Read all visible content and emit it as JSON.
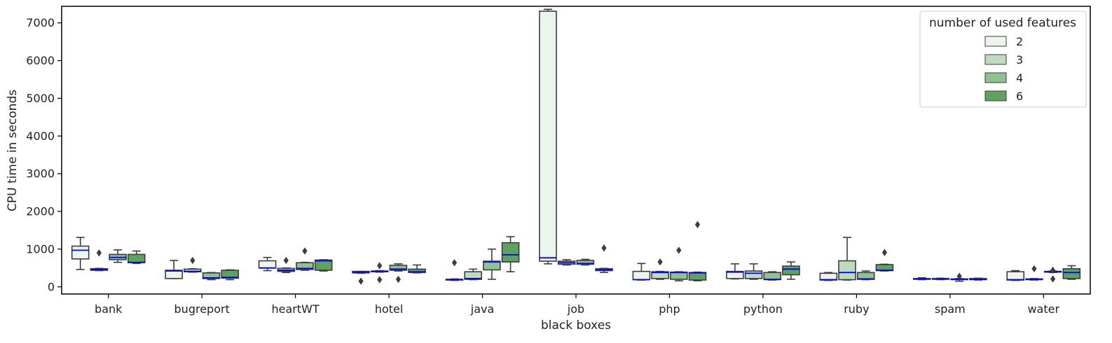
{
  "chart_data": {
    "type": "boxplot",
    "xlabel": "black boxes",
    "ylabel": "CPU time in seconds",
    "ylim": [
      -190,
      7440
    ],
    "yticks": [
      0,
      1000,
      2000,
      3000,
      4000,
      5000,
      6000,
      7000
    ],
    "categories": [
      "bank",
      "bugreport",
      "heartWT",
      "hotel",
      "java",
      "job",
      "php",
      "python",
      "ruby",
      "spam",
      "water"
    ],
    "legend": {
      "title": "number of used features",
      "placement": "top-right"
    },
    "grid": false,
    "median_color": "#0000ff",
    "series": [
      {
        "name": "2",
        "color": "#ebf5eb",
        "boxes": [
          {
            "whislo": 460,
            "q1": 740,
            "med": 970,
            "q3": 1080,
            "whishi": 1310,
            "fliers": []
          },
          {
            "whislo": 220,
            "q1": 220,
            "med": 420,
            "q3": 440,
            "whishi": 700,
            "fliers": []
          },
          {
            "whislo": 430,
            "q1": 500,
            "med": 500,
            "q3": 690,
            "whishi": 780,
            "fliers": []
          },
          {
            "whislo": 360,
            "q1": 370,
            "med": 390,
            "q3": 410,
            "whishi": 410,
            "fliers": [
              150
            ]
          },
          {
            "whislo": 170,
            "q1": 180,
            "med": 190,
            "q3": 200,
            "whishi": 210,
            "fliers": [
              640
            ]
          },
          {
            "whislo": 610,
            "q1": 680,
            "med": 770,
            "q3": 7310,
            "whishi": 7360,
            "fliers": []
          },
          {
            "whislo": 180,
            "q1": 190,
            "med": 190,
            "q3": 410,
            "whishi": 620,
            "fliers": []
          },
          {
            "whislo": 210,
            "q1": 220,
            "med": 390,
            "q3": 410,
            "whishi": 610,
            "fliers": []
          },
          {
            "whislo": 170,
            "q1": 180,
            "med": 190,
            "q3": 360,
            "whishi": 380,
            "fliers": []
          },
          {
            "whislo": 190,
            "q1": 200,
            "med": 210,
            "q3": 220,
            "whishi": 240,
            "fliers": []
          },
          {
            "whislo": 170,
            "q1": 180,
            "med": 190,
            "q3": 400,
            "whishi": 430,
            "fliers": []
          }
        ]
      },
      {
        "name": "3",
        "color": "#bddcbd",
        "boxes": [
          {
            "whislo": 430,
            "q1": 440,
            "med": 460,
            "q3": 480,
            "whishi": 490,
            "fliers": [
              900
            ]
          },
          {
            "whislo": 390,
            "q1": 400,
            "med": 410,
            "q3": 470,
            "whishi": 480,
            "fliers": [
              700
            ]
          },
          {
            "whislo": 380,
            "q1": 410,
            "med": 440,
            "q3": 490,
            "whishi": 500,
            "fliers": [
              700
            ]
          },
          {
            "whislo": 390,
            "q1": 400,
            "med": 410,
            "q3": 420,
            "whishi": 430,
            "fliers": [
              560,
              190
            ]
          },
          {
            "whislo": 190,
            "q1": 200,
            "med": 220,
            "q3": 400,
            "whishi": 470,
            "fliers": []
          },
          {
            "whislo": 580,
            "q1": 600,
            "med": 640,
            "q3": 680,
            "whishi": 720,
            "fliers": []
          },
          {
            "whislo": 200,
            "q1": 220,
            "med": 380,
            "q3": 400,
            "whishi": 410,
            "fliers": [
              660
            ]
          },
          {
            "whislo": 200,
            "q1": 220,
            "med": 360,
            "q3": 420,
            "whishi": 610,
            "fliers": []
          },
          {
            "whislo": 180,
            "q1": 190,
            "med": 380,
            "q3": 690,
            "whishi": 1310,
            "fliers": []
          },
          {
            "whislo": 190,
            "q1": 200,
            "med": 210,
            "q3": 220,
            "whishi": 230,
            "fliers": []
          },
          {
            "whislo": 180,
            "q1": 190,
            "med": 200,
            "q3": 210,
            "whishi": 220,
            "fliers": [
              480
            ]
          }
        ]
      },
      {
        "name": "4",
        "color": "#8fc28f",
        "boxes": [
          {
            "whislo": 650,
            "q1": 720,
            "med": 780,
            "q3": 860,
            "whishi": 980,
            "fliers": []
          },
          {
            "whislo": 190,
            "q1": 220,
            "med": 240,
            "q3": 370,
            "whishi": 380,
            "fliers": []
          },
          {
            "whislo": 440,
            "q1": 460,
            "med": 490,
            "q3": 640,
            "whishi": 650,
            "fliers": [
              950
            ]
          },
          {
            "whislo": 420,
            "q1": 440,
            "med": 470,
            "q3": 570,
            "whishi": 610,
            "fliers": [
              200
            ]
          },
          {
            "whislo": 200,
            "q1": 450,
            "med": 660,
            "q3": 680,
            "whishi": 1000,
            "fliers": []
          },
          {
            "whislo": 580,
            "q1": 600,
            "med": 620,
            "q3": 700,
            "whishi": 730,
            "fliers": []
          },
          {
            "whislo": 160,
            "q1": 200,
            "med": 380,
            "q3": 390,
            "whishi": 400,
            "fliers": [
              970
            ]
          },
          {
            "whislo": 180,
            "q1": 190,
            "med": 200,
            "q3": 380,
            "whishi": 400,
            "fliers": []
          },
          {
            "whislo": 190,
            "q1": 200,
            "med": 210,
            "q3": 380,
            "whishi": 420,
            "fliers": []
          },
          {
            "whislo": 150,
            "q1": 190,
            "med": 200,
            "q3": 210,
            "whishi": 220,
            "fliers": [
              280
            ]
          },
          {
            "whislo": 380,
            "q1": 390,
            "med": 400,
            "q3": 410,
            "whishi": 420,
            "fliers": [
              440,
              210
            ]
          }
        ]
      },
      {
        "name": "6",
        "color": "#5ea25e",
        "boxes": [
          {
            "whislo": 620,
            "q1": 640,
            "med": 650,
            "q3": 860,
            "whishi": 950,
            "fliers": []
          },
          {
            "whislo": 190,
            "q1": 230,
            "med": 250,
            "q3": 440,
            "whishi": 450,
            "fliers": []
          },
          {
            "whislo": 420,
            "q1": 440,
            "med": 690,
            "q3": 710,
            "whishi": 720,
            "fliers": []
          },
          {
            "whislo": 370,
            "q1": 380,
            "med": 400,
            "q3": 470,
            "whishi": 580,
            "fliers": []
          },
          {
            "whislo": 400,
            "q1": 660,
            "med": 850,
            "q3": 1170,
            "whishi": 1330,
            "fliers": []
          },
          {
            "whislo": 380,
            "q1": 430,
            "med": 450,
            "q3": 480,
            "whishi": 490,
            "fliers": [
              1030
            ]
          },
          {
            "whislo": 160,
            "q1": 180,
            "med": 370,
            "q3": 380,
            "whishi": 390,
            "fliers": [
              1650
            ]
          },
          {
            "whislo": 200,
            "q1": 320,
            "med": 470,
            "q3": 550,
            "whishi": 660,
            "fliers": []
          },
          {
            "whislo": 420,
            "q1": 430,
            "med": 440,
            "q3": 590,
            "whishi": 600,
            "fliers": [
              910
            ]
          },
          {
            "whislo": 180,
            "q1": 190,
            "med": 200,
            "q3": 220,
            "whishi": 230,
            "fliers": []
          },
          {
            "whislo": 200,
            "q1": 220,
            "med": 380,
            "q3": 480,
            "whishi": 560,
            "fliers": []
          }
        ]
      }
    ]
  }
}
